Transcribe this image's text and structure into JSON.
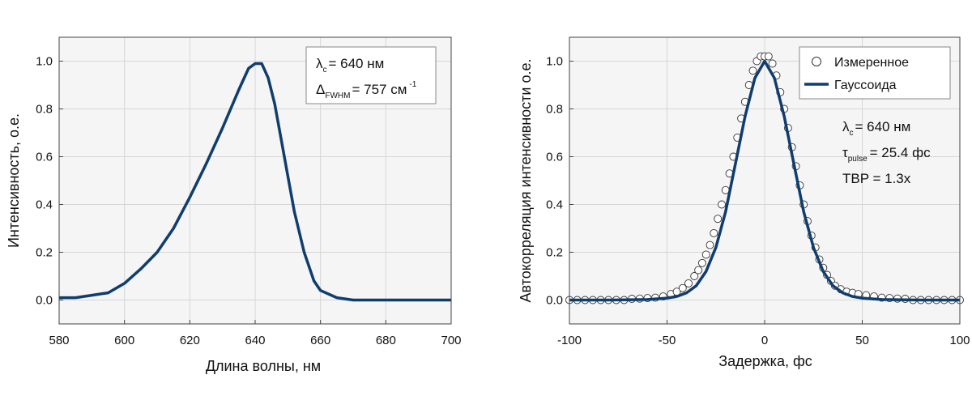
{
  "colors": {
    "series": "#0f3d6e",
    "plot_bg": "#f5f5f5",
    "grid": "#d6d6d6",
    "marker_edge": "#333333",
    "marker_fill": "#ffffff"
  },
  "chart_data": [
    {
      "type": "line",
      "title": "",
      "xlabel": "Длина волны, нм",
      "ylabel": "Интенсивность, о.е.",
      "xlim": [
        580,
        700
      ],
      "ylim": [
        -0.1,
        1.1
      ],
      "xticks": [
        580,
        600,
        620,
        640,
        660,
        680,
        700
      ],
      "yticks": [
        0.0,
        0.2,
        0.4,
        0.6,
        0.8,
        1.0
      ],
      "ytick_labels": [
        "0.0",
        "0.2",
        "0.4",
        "0.6",
        "0.8",
        "1.0"
      ],
      "grid": true,
      "annotation": {
        "lambda_symbol": "λ",
        "lambda_sub": "c",
        "lambda_value": "= 640 нм",
        "fwhm_symbol": "Δ",
        "fwhm_sub": "FWHM",
        "fwhm_value": "= 757 см",
        "fwhm_exp": "-1",
        "placement": "top-right"
      },
      "series": [
        {
          "x": [
            580,
            585,
            590,
            595,
            600,
            605,
            610,
            615,
            620,
            625,
            630,
            635,
            638,
            640,
            642,
            644,
            646,
            648,
            650,
            652,
            655,
            658,
            660,
            665,
            670,
            675,
            680,
            685,
            690,
            695,
            700
          ],
          "y": [
            0.01,
            0.01,
            0.02,
            0.03,
            0.07,
            0.13,
            0.2,
            0.3,
            0.43,
            0.57,
            0.72,
            0.88,
            0.97,
            0.99,
            0.99,
            0.93,
            0.82,
            0.67,
            0.52,
            0.37,
            0.2,
            0.08,
            0.04,
            0.01,
            0.0,
            0.0,
            0.0,
            0.0,
            0.0,
            0.0,
            0.0
          ]
        }
      ]
    },
    {
      "type": "scatter",
      "title": "",
      "xlabel": "Задержка, фс",
      "ylabel": "Автокорреляция интенсивности о.е.",
      "xlim": [
        -100,
        100
      ],
      "ylim": [
        -0.1,
        1.1
      ],
      "xticks": [
        -100,
        -50,
        0,
        50,
        100
      ],
      "yticks": [
        0.0,
        0.2,
        0.4,
        0.6,
        0.8,
        1.0
      ],
      "ytick_labels": [
        "0.0",
        "0.2",
        "0.4",
        "0.6",
        "0.8",
        "1.0"
      ],
      "grid": true,
      "legend": {
        "placement": "top-right",
        "entries": [
          "Измеренное",
          "Гауссоида"
        ]
      },
      "annotation": {
        "lambda_symbol": "λ",
        "lambda_sub": "c",
        "lambda_value": "= 640 нм",
        "tau_symbol": "τ",
        "tau_sub": "pulse",
        "tau_value": "= 25.4 фс",
        "tbp_text": "TBP = 1.3x"
      },
      "series": [
        {
          "name": "Измеренное",
          "kind": "markers",
          "x": [
            -100,
            -96,
            -92,
            -88,
            -84,
            -80,
            -76,
            -72,
            -68,
            -64,
            -60,
            -56,
            -52,
            -48,
            -45,
            -42,
            -39,
            -36,
            -34,
            -32,
            -30,
            -28,
            -26,
            -24,
            -22,
            -20,
            -18,
            -16,
            -14,
            -12,
            -10,
            -8,
            -6,
            -4,
            -2,
            0,
            2,
            4,
            6,
            8,
            10,
            12,
            14,
            16,
            18,
            20,
            22,
            24,
            26,
            28,
            30,
            32,
            34,
            36,
            39,
            42,
            45,
            48,
            52,
            56,
            60,
            64,
            68,
            72,
            76,
            80,
            84,
            88,
            92,
            96,
            100
          ],
          "y": [
            0.0,
            0.0,
            0.0,
            0.0,
            0.0,
            0.0,
            0.0,
            0.0,
            0.005,
            0.006,
            0.008,
            0.01,
            0.015,
            0.025,
            0.035,
            0.05,
            0.07,
            0.1,
            0.125,
            0.155,
            0.19,
            0.23,
            0.28,
            0.34,
            0.4,
            0.46,
            0.53,
            0.6,
            0.68,
            0.76,
            0.83,
            0.9,
            0.96,
            1.0,
            1.02,
            1.02,
            1.02,
            0.99,
            0.94,
            0.87,
            0.8,
            0.72,
            0.64,
            0.56,
            0.48,
            0.4,
            0.33,
            0.27,
            0.22,
            0.17,
            0.135,
            0.105,
            0.08,
            0.06,
            0.045,
            0.035,
            0.03,
            0.025,
            0.02,
            0.015,
            0.01,
            0.008,
            0.006,
            0.005,
            0.0,
            0.0,
            0.0,
            0.0,
            0.0,
            0.0,
            0.0
          ]
        },
        {
          "name": "Гауссоида",
          "kind": "line",
          "x": [
            -100,
            -80,
            -60,
            -50,
            -45,
            -40,
            -35,
            -30,
            -25,
            -20,
            -15,
            -10,
            -5,
            0,
            5,
            10,
            15,
            20,
            25,
            30,
            35,
            40,
            45,
            50,
            60,
            80,
            100
          ],
          "y": [
            0.0,
            0.0,
            0.002,
            0.008,
            0.015,
            0.03,
            0.06,
            0.12,
            0.22,
            0.37,
            0.57,
            0.77,
            0.93,
            1.0,
            0.93,
            0.77,
            0.57,
            0.37,
            0.22,
            0.12,
            0.06,
            0.03,
            0.015,
            0.008,
            0.002,
            0.0,
            0.0
          ]
        }
      ]
    }
  ]
}
